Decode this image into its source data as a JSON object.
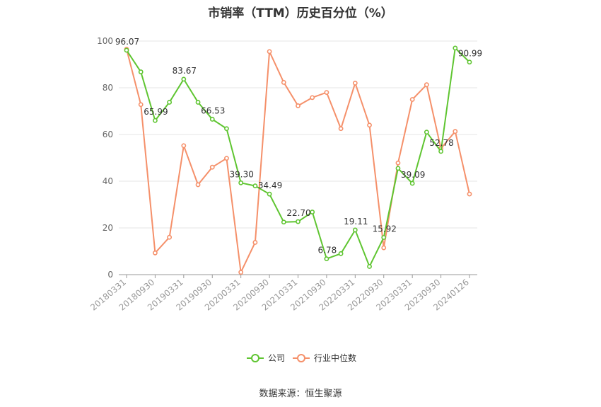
{
  "title": "市销率（TTM）历史百分位（%）",
  "source": "数据来源：恒生聚源",
  "chart_data": {
    "type": "line",
    "title": "市销率（TTM）历史百分位（%）",
    "ylim": [
      0,
      100
    ],
    "yticks": [
      0,
      20,
      40,
      60,
      80,
      100
    ],
    "x_tick_labels": [
      "20180331",
      "20180930",
      "20190331",
      "20190930",
      "20200331",
      "20200930",
      "20210331",
      "20210930",
      "20220331",
      "20220930",
      "20230331",
      "20230930",
      "20240126"
    ],
    "grid": true,
    "legend_position": "bottom-center",
    "series": [
      {
        "name": "公司",
        "color": "#5fc531",
        "values": [
          96.07,
          86.8,
          65.99,
          73.8,
          83.67,
          73.8,
          66.53,
          62.5,
          39.3,
          38.0,
          34.49,
          22.5,
          22.7,
          26.8,
          6.78,
          9.0,
          19.11,
          3.5,
          15.92,
          45.5,
          39.09,
          61.0,
          52.78,
          97.0,
          90.99
        ],
        "labels": [
          "96.07",
          "",
          "65.99",
          "",
          "83.67",
          "",
          "66.53",
          "",
          "39.30",
          "",
          "34.49",
          "",
          "22.70",
          "",
          "6.78",
          "",
          "19.11",
          "",
          "15.92",
          "",
          "39.09",
          "",
          "52.78",
          "",
          "90.99"
        ]
      },
      {
        "name": "行业中位数",
        "color": "#f5906a",
        "values": [
          96.5,
          72.8,
          9.3,
          16.0,
          55.2,
          38.5,
          46.0,
          49.8,
          1.0,
          13.8,
          95.5,
          82.3,
          72.3,
          75.8,
          78.0,
          62.5,
          82.0,
          64.0,
          11.5,
          47.8,
          75.0,
          81.3,
          54.0,
          61.3,
          34.5
        ]
      }
    ]
  }
}
